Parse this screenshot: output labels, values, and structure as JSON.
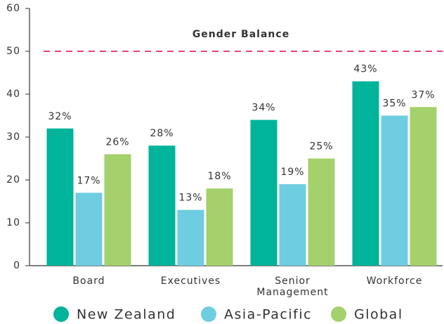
{
  "chart_data": {
    "type": "bar",
    "categories": [
      "Board",
      "Executives",
      "Senior Management",
      "Workforce"
    ],
    "series": [
      {
        "name": "New Zealand",
        "color": "#00b39b",
        "values": [
          32,
          28,
          34,
          43
        ],
        "value_labels": [
          "32%",
          "28%",
          "34%",
          "43%"
        ]
      },
      {
        "name": "Asia-Pacific",
        "color": "#6ecde0",
        "values": [
          17,
          13,
          19,
          35
        ],
        "value_labels": [
          "17%",
          "13%",
          "19%",
          "35%"
        ]
      },
      {
        "name": "Global",
        "color": "#a4d16b",
        "values": [
          26,
          18,
          25,
          37
        ],
        "value_labels": [
          "26%",
          "18%",
          "25%",
          "37%"
        ]
      }
    ],
    "ylim": [
      0,
      60
    ],
    "yticks": [
      0,
      10,
      20,
      30,
      40,
      50,
      60
    ],
    "reference_line": {
      "value": 50,
      "label": "Gender Balance",
      "color": "#e8427c"
    },
    "legend": "bottom"
  }
}
